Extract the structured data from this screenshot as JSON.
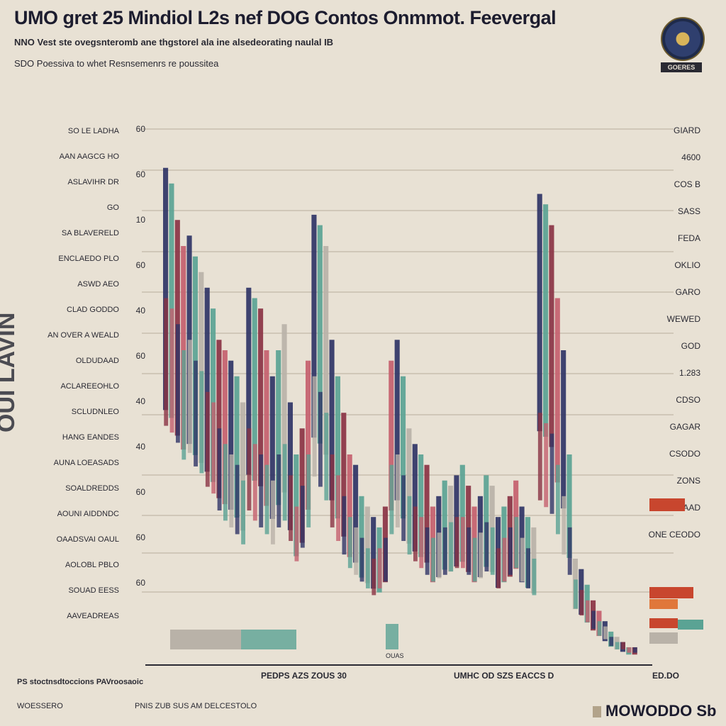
{
  "header": {
    "title": "UMO gret 25 Mindiol L2s nef DOG Contos Onmmot. Feevergal",
    "subtitle": "NNO Vest ste ovegsnteromb ane thgstorel ala ine alsedeorating naulal IB",
    "subtitle2": "SDO Poessiva to whet Resnsemenrs re poussitea",
    "seal_label": "GOERES"
  },
  "side_label": "OUI LAVIN",
  "colors": {
    "background": "#e8e1d4",
    "navy": "#2f3466",
    "teal": "#5aa394",
    "maroon": "#8a3344",
    "rose": "#c4606e",
    "red": "#c8462e",
    "orange": "#e0773a",
    "grey": "#b9b2a8",
    "axis": "#2a2a33"
  },
  "chart_data": {
    "type": "bar",
    "left_ticks": [
      "SO LE LADHA",
      "AAN AAGCG HO",
      "ASLAVIHR DR",
      "GO",
      "SA BLAVERELD",
      "ENCLAEDO PLO",
      "ASWD AEO",
      "CLAD GODDO",
      "AN OVER A WEALD",
      "OLDUDAAD",
      "ACLAREEOHLO",
      "SCLUDNLEO",
      "HANG EANDES",
      "AUNA LOEASADS",
      "SOALDREDDS",
      "AOUNI AIDDNDC",
      "OAADSVAI OAUL",
      "AOLOBL PBLO",
      "SOUAD EESS",
      "AAVEADREAS"
    ],
    "y_ticks": [
      "60",
      "60",
      "10",
      "60",
      "40",
      "60",
      "40",
      "40",
      "60",
      "60",
      "60"
    ],
    "right_ticks": [
      "GIARD",
      "4600",
      "COS B",
      "SASS",
      "FEDA",
      "OKLIO",
      "GARO",
      "WEWED",
      "GOD",
      "1.283",
      "CDSO",
      "GAGAR",
      "CSODO",
      "ZONS",
      "GO AAD",
      "ONE CEODO"
    ],
    "x_labels": [
      "PEDPS AZS ZOUS 30",
      "UMHC OD SZS EACCS D",
      "ED.DO"
    ],
    "bottom_small_label": "OUAS",
    "x": [
      1,
      2,
      3,
      4,
      5,
      6,
      7,
      8,
      9,
      10,
      11,
      12,
      13,
      14,
      15,
      16,
      17,
      18,
      19,
      20,
      21,
      22,
      23,
      24,
      25,
      26,
      27,
      28,
      29,
      30,
      31,
      32,
      33,
      34,
      35,
      36,
      37,
      38,
      39,
      40,
      41,
      42,
      43,
      44,
      45,
      46,
      47,
      48,
      49,
      50,
      51,
      52,
      53,
      54,
      55,
      56,
      57,
      58,
      59,
      60,
      61,
      62,
      63,
      64,
      65,
      66,
      67,
      68,
      69,
      70,
      71,
      72,
      73,
      74,
      75,
      76,
      77,
      78,
      79,
      80
    ],
    "series": [
      {
        "values": [
          95,
          92,
          85,
          80,
          82,
          78,
          75,
          72,
          68,
          62,
          60,
          58,
          55,
          50,
          72,
          70,
          68,
          60,
          55,
          60,
          65,
          50,
          40,
          45,
          58,
          86,
          84,
          80,
          62,
          55,
          48,
          40,
          38,
          32,
          30,
          28,
          26,
          30,
          58,
          62,
          55,
          45,
          42,
          40,
          38,
          30,
          32,
          35,
          34,
          36,
          38,
          34,
          30,
          32,
          36,
          34,
          28,
          30,
          32,
          35,
          30,
          28,
          26,
          90,
          88,
          84,
          70,
          60,
          40,
          20,
          18,
          15,
          12,
          10,
          8,
          6,
          5,
          4,
          3,
          3
        ]
      },
      {
        "values": [
          70,
          68,
          65,
          60,
          62,
          58,
          56,
          52,
          50,
          45,
          42,
          40,
          38,
          35,
          45,
          42,
          40,
          38,
          35,
          40,
          42,
          36,
          30,
          34,
          40,
          55,
          52,
          48,
          40,
          36,
          32,
          28,
          26,
          24,
          22,
          20,
          22,
          24,
          38,
          40,
          36,
          32,
          30,
          28,
          26,
          24,
          25,
          26,
          27,
          28,
          28,
          26,
          24,
          25,
          27,
          26,
          22,
          24,
          26,
          28,
          24,
          22,
          20,
          48,
          46,
          44,
          38,
          32,
          26,
          16,
          14,
          12,
          10,
          8,
          7,
          5,
          4,
          4,
          3,
          3
        ]
      }
    ],
    "ylim": [
      0,
      100
    ],
    "grid": true
  }
}
